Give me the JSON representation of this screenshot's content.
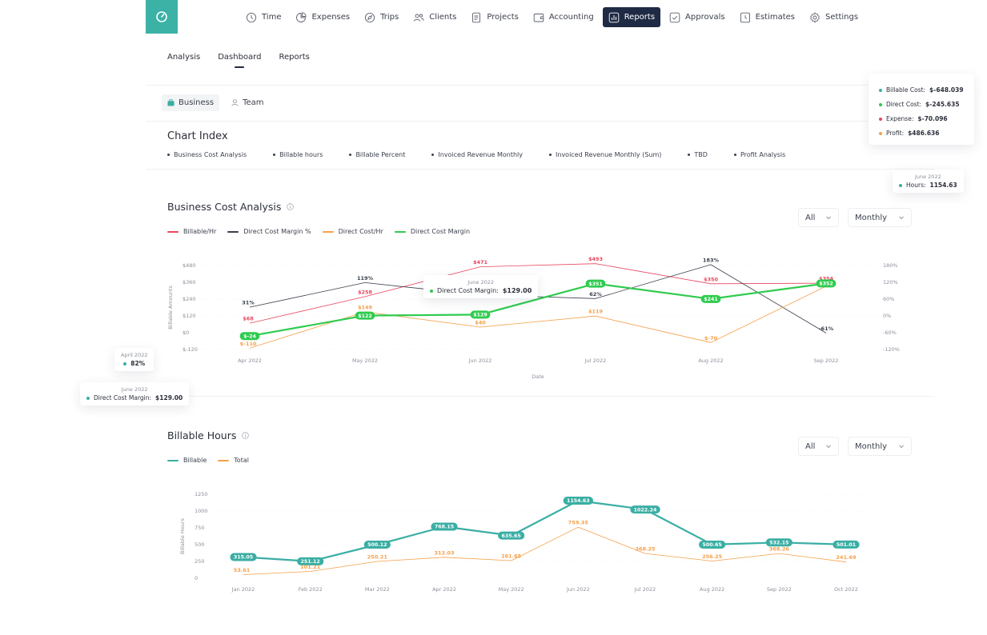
{
  "nav": {
    "items": [
      {
        "label": "Time",
        "icon": "clock-icon",
        "active": false
      },
      {
        "label": "Expenses",
        "icon": "pie-chart-icon",
        "active": false
      },
      {
        "label": "Trips",
        "icon": "compass-icon",
        "active": false
      },
      {
        "label": "Clients",
        "icon": "users-icon",
        "active": false
      },
      {
        "label": "Projects",
        "icon": "document-icon",
        "active": false
      },
      {
        "label": "Accounting",
        "icon": "wallet-icon",
        "active": false
      },
      {
        "label": "Reports",
        "icon": "bar-chart-icon",
        "active": true
      },
      {
        "label": "Approvals",
        "icon": "check-square-icon",
        "active": false
      },
      {
        "label": "Estimates",
        "icon": "clock-file-icon",
        "active": false
      },
      {
        "label": "Settings",
        "icon": "gear-icon",
        "active": false
      }
    ]
  },
  "subtabs": [
    {
      "label": "Analysis",
      "active": false
    },
    {
      "label": "Dashboard",
      "active": true
    },
    {
      "label": "Reports",
      "active": false
    }
  ],
  "toggle": {
    "business": "Business",
    "team": "Team"
  },
  "chart_index": {
    "title": "Chart Index",
    "items": [
      "Business Cost Analysis",
      "Billable hours",
      "Billable Percent",
      "Invoiced Revenue Monthly",
      "Invoiced Revenue Monthly (Sum)",
      "TBD",
      "Profit Analysis"
    ]
  },
  "business_cost": {
    "title": "Business Cost Analysis",
    "filter_all": "All",
    "filter_period": "Monthly"
  },
  "billable_hours": {
    "title": "Billable Hours",
    "filter_all": "All",
    "filter_period": "Monthly"
  },
  "colors": {
    "red": "#e8475f",
    "dark": "#3a3f4b",
    "orange": "#f5a04a",
    "green": "#2fcb4f",
    "teal": "#3aaea4",
    "brand": "#3cb1a6",
    "nav_active": "#1f2a44"
  },
  "floating": {
    "summary": {
      "rows": [
        {
          "label": "Billable Cost:",
          "value": "$-648.039",
          "color": "#3aaea4"
        },
        {
          "label": "Direct Cost:",
          "value": "$-245.635",
          "color": "#2fcb4f"
        },
        {
          "label": "Expense:",
          "value": "$-70.096",
          "color": "#e8475f"
        },
        {
          "label": "Profit:",
          "value": "$486.636",
          "color": "#f5a04a"
        }
      ]
    },
    "hours_card": {
      "date": "June 2022",
      "label": "Hours:",
      "value": "1154.63"
    },
    "percent_card": {
      "date": "April 2022",
      "value": "82%"
    },
    "margin_card": {
      "date": "June 2022",
      "label": "Direct Cost Margin:",
      "value": "$129.00"
    },
    "inline_tooltip": {
      "date": "June 2022",
      "label": "Direct Cost Margin:",
      "value": "$129.00"
    }
  },
  "chart_data": [
    {
      "type": "line",
      "title": "Business Cost Analysis",
      "xlabel": "Date",
      "ylabel": "Billable Amounts",
      "ylim": [
        -120,
        480
      ],
      "y2lim": [
        -120,
        180
      ],
      "yticks": [
        "$480",
        "$360",
        "$240",
        "$120",
        "$0",
        "$-120"
      ],
      "y2ticks": [
        "180%",
        "120%",
        "60%",
        "0%",
        "-60%",
        "-120%"
      ],
      "categories": [
        "Apr 2022",
        "May 2022",
        "Jun 2022",
        "Jul 2022",
        "Aug 2022",
        "Sep 2022"
      ],
      "legend_position": "top-left",
      "series": [
        {
          "name": "Billable/Hr",
          "color": "#e8475f",
          "axis": "left",
          "style": "label",
          "values": [
            68,
            258,
            471,
            493,
            350,
            354
          ],
          "labels": [
            "$68",
            "$258",
            "$471",
            "$493",
            "$350",
            "$354"
          ]
        },
        {
          "name": "Direct Cost Margin %",
          "color": "#3a3f4b",
          "axis": "right",
          "style": "label",
          "values": [
            31,
            119,
            75,
            62,
            183,
            -61
          ],
          "labels": [
            "31%",
            "119%",
            "",
            "62%",
            "183%",
            "-61%"
          ]
        },
        {
          "name": "Direct Cost/Hr",
          "color": "#f5a04a",
          "axis": "left",
          "style": "label",
          "values": [
            -110,
            149,
            40,
            119,
            -70,
            332
          ],
          "labels": [
            "$-110",
            "$149",
            "$40",
            "$119",
            "$-70",
            "$332"
          ]
        },
        {
          "name": "Direct Cost Margin",
          "color": "#2fcb4f",
          "axis": "left",
          "style": "pill",
          "values": [
            -24,
            122,
            129,
            351,
            241,
            352
          ],
          "labels": [
            "$-24",
            "$122",
            "$129",
            "$351",
            "$241",
            "$352"
          ]
        }
      ]
    },
    {
      "type": "line",
      "title": "Billable Hours",
      "xlabel": "",
      "ylabel": "Billable Hours",
      "ylim": [
        0,
        1250
      ],
      "yticks": [
        "1250",
        "1000",
        "750",
        "500",
        "250",
        "0"
      ],
      "categories": [
        "Jan 2022",
        "Feb 2022",
        "Mar 2022",
        "Apr 2022",
        "May 2022",
        "Jun 2022",
        "Jul 2022",
        "Aug 2022",
        "Sep 2022",
        "Oct 2022"
      ],
      "legend_position": "top-left",
      "series": [
        {
          "name": "Billable",
          "color": "#3aaea4",
          "style": "pill",
          "values": [
            315.05,
            251.12,
            500.12,
            768.15,
            635.65,
            1154.63,
            1022.24,
            500.65,
            532.15,
            501.01
          ],
          "labels": [
            "315.05",
            "251.12",
            "500.12",
            "768.15",
            "635.65",
            "1154.63",
            "1022.24",
            "500.65",
            "532.15",
            "501.01"
          ]
        },
        {
          "name": "Total",
          "color": "#f5a04a",
          "style": "label",
          "values": [
            53.61,
            101.21,
            250.21,
            312.03,
            261.65,
            759.35,
            368.25,
            256.25,
            368.26,
            241.69
          ],
          "labels": [
            "53.61",
            "101.21",
            "250.21",
            "312.03",
            "261.65",
            "759.35",
            "368.25",
            "256.25",
            "368.26",
            "241.69"
          ]
        }
      ]
    }
  ]
}
